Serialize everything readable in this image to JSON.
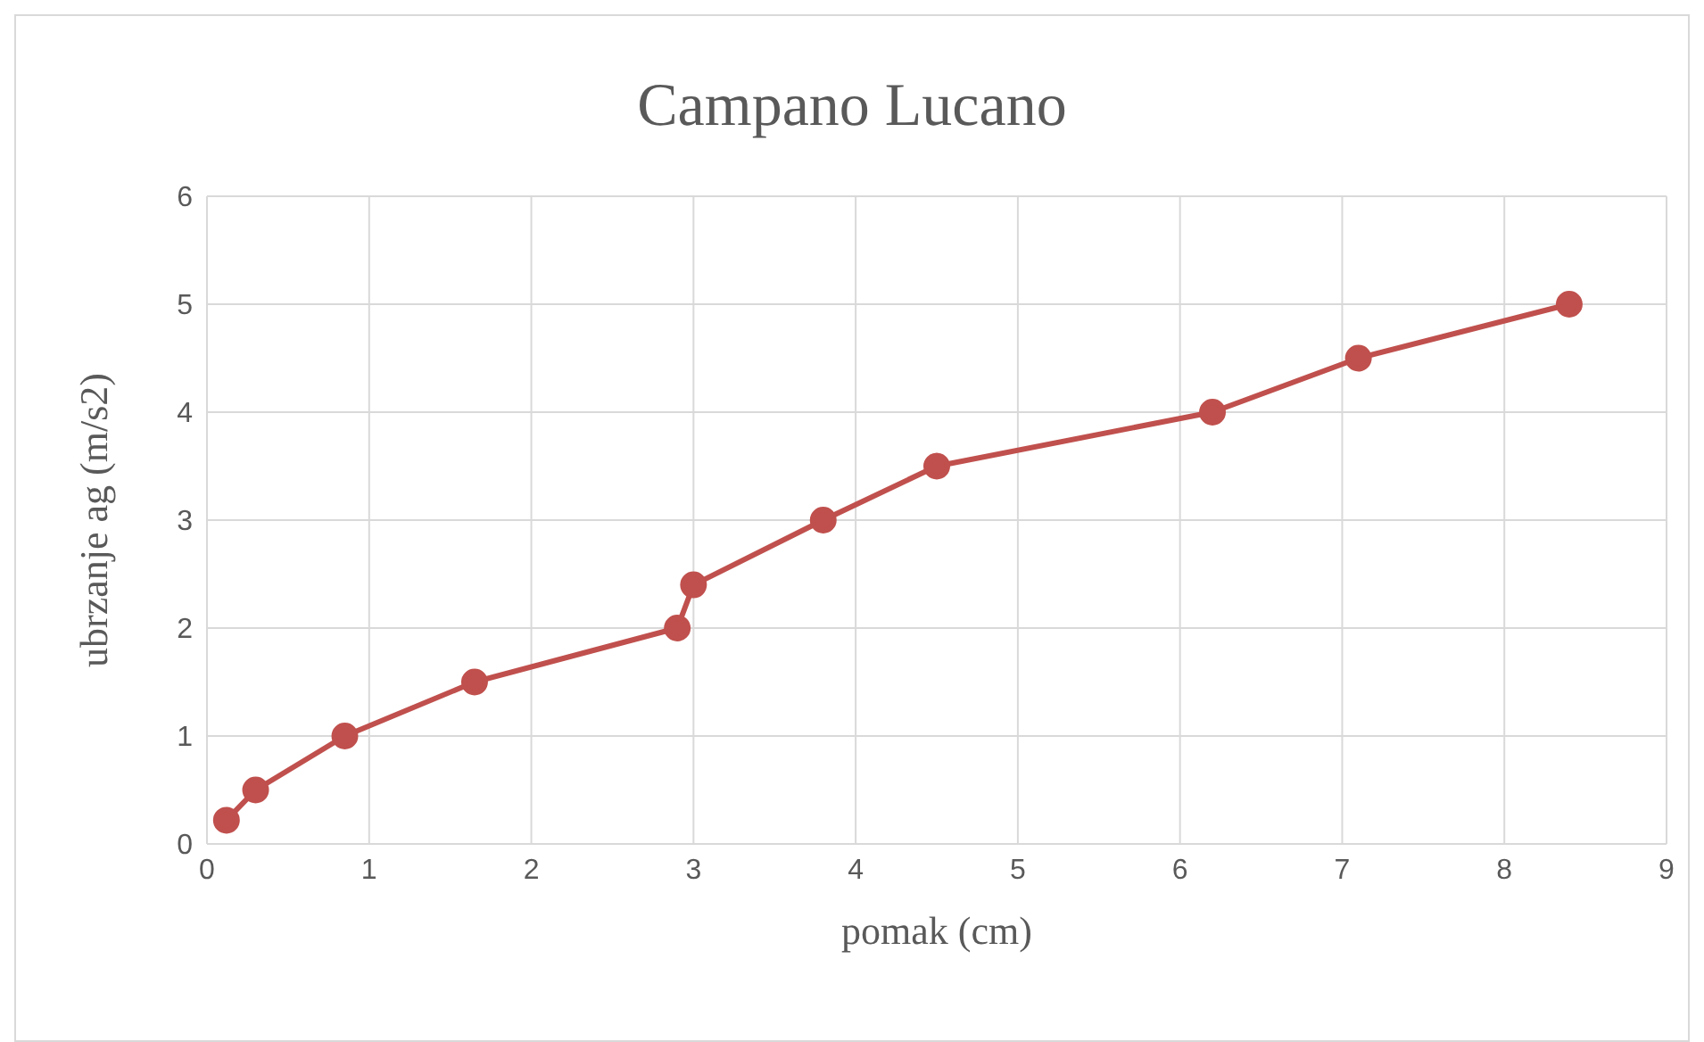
{
  "chart_data": {
    "type": "line",
    "title": "Campano Lucano",
    "xlabel": "pomak (cm)",
    "ylabel": "ubrzanje ag (m/s2)",
    "x": [
      0.12,
      0.3,
      0.85,
      1.65,
      2.9,
      3.0,
      3.8,
      4.5,
      6.2,
      7.1,
      8.4
    ],
    "series": [
      {
        "color": "#c0504d",
        "values": [
          0.22,
          0.5,
          1.0,
          1.5,
          2.0,
          2.4,
          3.0,
          3.5,
          4.0,
          4.5,
          5.0
        ]
      }
    ],
    "xlim": [
      0,
      9
    ],
    "xticks": [
      0,
      1,
      2,
      3,
      4,
      5,
      6,
      7,
      8,
      9
    ],
    "ylim": [
      0,
      6
    ],
    "yticks": [
      0,
      1,
      2,
      3,
      4,
      5,
      6
    ],
    "grid": true,
    "legend": false,
    "marker": "circle",
    "line_style": "solid"
  }
}
